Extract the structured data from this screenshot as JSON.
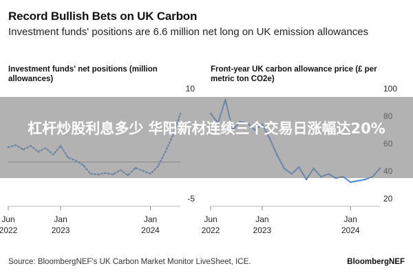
{
  "header": {
    "title": "Record Bullish Bets on UK Carbon",
    "subtitle": "Investment funds' positions are 6.6 million net long on UK emission allowances"
  },
  "overlay": {
    "text": "杠杆炒股利息多少 华阳新材连续三个交易日涨幅达20%"
  },
  "footer": {
    "source": "Source: BloombergNEF's UK Carbon Market Monitor LiveSheet, ICE.",
    "brand": "BloombergNEF"
  },
  "colors": {
    "line": "#4a86d6",
    "zero_line": "#888888",
    "banner": "#828282"
  },
  "chart_data": [
    {
      "type": "line",
      "title": "Investment funds' net positions (million allowances)",
      "line_style": "dotted",
      "x_start": "2022-06",
      "x_end": "2024-05",
      "x_ticks": [
        {
          "date": "2022-06",
          "label": [
            "Jun",
            "2022"
          ]
        },
        {
          "date": "2023-01",
          "label": [
            "Jan",
            "2023"
          ]
        },
        {
          "date": "2024-01",
          "label": [
            "Jan",
            "2024"
          ]
        }
      ],
      "ylim": [
        -5,
        10
      ],
      "y_ticks": [
        10,
        5,
        0,
        -5
      ],
      "y_tick_labels": [
        "10",
        "",
        "",
        "-5"
      ],
      "zero_line": true,
      "series": [
        {
          "x": [
            "2022-06",
            "2022-07",
            "2022-08",
            "2022-09",
            "2022-10",
            "2022-11",
            "2022-12",
            "2023-01",
            "2023-02",
            "2023-03",
            "2023-04",
            "2023-05",
            "2023-06",
            "2023-07",
            "2023-08",
            "2023-09",
            "2023-10",
            "2023-11",
            "2023-12",
            "2024-01",
            "2024-02",
            "2024-03",
            "2024-04",
            "2024-05"
          ],
          "values": [
            2.0,
            2.3,
            1.7,
            2.2,
            1.4,
            1.9,
            1.0,
            2.2,
            0.6,
            0.2,
            -0.4,
            -1.6,
            -1.7,
            -1.5,
            -1.7,
            -1.1,
            -1.8,
            -0.8,
            -1.2,
            -1.6,
            -0.6,
            1.4,
            3.6,
            6.6
          ]
        }
      ]
    },
    {
      "type": "line",
      "title": "Front-year UK carbon allowance price (£ per metric ton CO2e)",
      "line_style": "solid",
      "x_start": "2022-06",
      "x_end": "2024-05",
      "x_ticks": [
        {
          "date": "2022-06",
          "label": [
            "Jun",
            "2022"
          ]
        },
        {
          "date": "2023-01",
          "label": [
            "Jan",
            "2023"
          ]
        },
        {
          "date": "2024-01",
          "label": [
            "Jan",
            "2024"
          ]
        }
      ],
      "ylim": [
        20,
        100
      ],
      "y_ticks": [
        100,
        80,
        60,
        40,
        20
      ],
      "y_tick_labels": [
        "100",
        "80",
        "60",
        "40",
        "20"
      ],
      "series": [
        {
          "x": [
            "2022-06",
            "2022-07",
            "2022-08",
            "2022-09",
            "2022-10",
            "2022-11",
            "2022-12",
            "2023-01",
            "2023-02",
            "2023-03",
            "2023-04",
            "2023-05",
            "2023-06",
            "2023-07",
            "2023-08",
            "2023-09",
            "2023-10",
            "2023-11",
            "2023-12",
            "2024-01",
            "2024-02",
            "2024-03",
            "2024-04",
            "2024-05"
          ],
          "values": [
            82,
            75,
            92,
            70,
            76,
            75,
            70,
            74,
            64,
            52,
            42,
            38,
            43,
            34,
            42,
            36,
            38,
            35,
            36,
            32,
            33,
            34,
            36,
            42
          ]
        }
      ]
    }
  ]
}
